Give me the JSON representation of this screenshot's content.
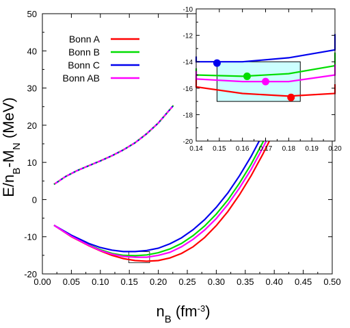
{
  "chart_data": {
    "type": "line",
    "xlabel": "n_B (fm^-3)",
    "ylabel": "E/n_B-M_N (MeV)",
    "xlim": [
      0.0,
      0.5
    ],
    "ylim": [
      -20,
      50
    ],
    "xticks": [
      "0.00",
      "0.05",
      "0.10",
      "0.15",
      "0.20",
      "0.25",
      "0.30",
      "0.35",
      "0.40",
      "0.45",
      "0.50"
    ],
    "yticks": [
      "-20",
      "-10",
      "0",
      "10",
      "20",
      "30",
      "40",
      "50"
    ],
    "legend_position": "top-left",
    "series": [
      {
        "name": "Bonn A",
        "color": "#ff0000",
        "x": [
          0.02,
          0.05,
          0.08,
          0.1,
          0.12,
          0.14,
          0.16,
          0.18,
          0.2,
          0.22,
          0.24,
          0.26,
          0.28,
          0.3,
          0.32,
          0.34,
          0.36,
          0.38,
          0.4,
          0.42,
          0.436
        ],
        "y": [
          -6.9,
          -10.0,
          -12.4,
          -13.8,
          -15.0,
          -15.9,
          -16.4,
          -16.6,
          -16.4,
          -15.7,
          -14.5,
          -12.7,
          -10.2,
          -7.0,
          -3.2,
          1.3,
          6.4,
          12.1,
          18.4,
          25.3,
          31.0
        ]
      },
      {
        "name": "Bonn B",
        "color": "#00dd00",
        "x": [
          0.02,
          0.05,
          0.08,
          0.1,
          0.12,
          0.14,
          0.16,
          0.18,
          0.2,
          0.22,
          0.24,
          0.26,
          0.28,
          0.3,
          0.32,
          0.34,
          0.36,
          0.38,
          0.4,
          0.42
        ],
        "y": [
          -6.9,
          -9.9,
          -12.2,
          -13.5,
          -14.5,
          -15.0,
          -15.1,
          -14.9,
          -14.3,
          -13.3,
          -11.8,
          -9.7,
          -7.1,
          -3.9,
          -0.1,
          4.4,
          9.5,
          15.3,
          21.7,
          28.7
        ]
      },
      {
        "name": "Bonn C",
        "color": "#0000ee",
        "x": [
          0.02,
          0.05,
          0.08,
          0.1,
          0.12,
          0.14,
          0.16,
          0.18,
          0.2,
          0.22,
          0.24,
          0.26,
          0.28,
          0.3,
          0.32,
          0.34,
          0.36,
          0.38,
          0.4,
          0.41
        ],
        "y": [
          -6.9,
          -9.6,
          -11.8,
          -12.9,
          -13.6,
          -14.0,
          -14.0,
          -13.7,
          -13.1,
          -11.9,
          -10.3,
          -8.1,
          -5.4,
          -2.1,
          1.8,
          6.4,
          11.6,
          17.5,
          24.0,
          27.5
        ]
      },
      {
        "name": "Bonn AB",
        "color": "#ff00ff",
        "x": [
          0.02,
          0.05,
          0.08,
          0.1,
          0.12,
          0.14,
          0.16,
          0.18,
          0.2,
          0.22,
          0.24,
          0.26,
          0.28,
          0.3,
          0.32,
          0.34,
          0.36,
          0.38,
          0.4,
          0.42,
          0.425
        ],
        "y": [
          -6.9,
          -9.9,
          -12.3,
          -13.7,
          -14.7,
          -15.3,
          -15.5,
          -15.5,
          -15.0,
          -14.2,
          -12.7,
          -10.7,
          -8.2,
          -5.1,
          -1.3,
          3.1,
          8.1,
          13.8,
          20.1,
          27.0,
          28.8
        ]
      }
    ],
    "dashed_curve": {
      "x": [
        0.02,
        0.04,
        0.06,
        0.08,
        0.1,
        0.12,
        0.14,
        0.16,
        0.18,
        0.2,
        0.226
      ],
      "y": [
        4.1,
        6.2,
        7.8,
        9.1,
        10.4,
        11.8,
        13.4,
        15.3,
        17.7,
        20.6,
        25.3
      ],
      "colors": [
        "#ff0000",
        "#00dd00",
        "#0000ee",
        "#ff00ff"
      ]
    },
    "inset": {
      "xlim": [
        0.14,
        0.2
      ],
      "ylim": [
        -20,
        -10
      ],
      "xticks": [
        "0.14",
        "0.15",
        "0.16",
        "0.17",
        "0.18",
        "0.19",
        "0.20"
      ],
      "yticks": [
        "-20",
        "-18",
        "-16",
        "-14",
        "-12",
        "-10"
      ],
      "saturation_box": {
        "x": [
          0.149,
          0.185
        ],
        "y": [
          -17.0,
          -14.0
        ],
        "fill": "#ccffff"
      },
      "saturation_points": [
        {
          "series": "Bonn A",
          "x": 0.181,
          "y": -16.7
        },
        {
          "series": "Bonn B",
          "x": 0.162,
          "y": -15.1
        },
        {
          "series": "Bonn C",
          "x": 0.149,
          "y": -14.1
        },
        {
          "series": "Bonn AB",
          "x": 0.17,
          "y": -15.5
        }
      ]
    }
  }
}
